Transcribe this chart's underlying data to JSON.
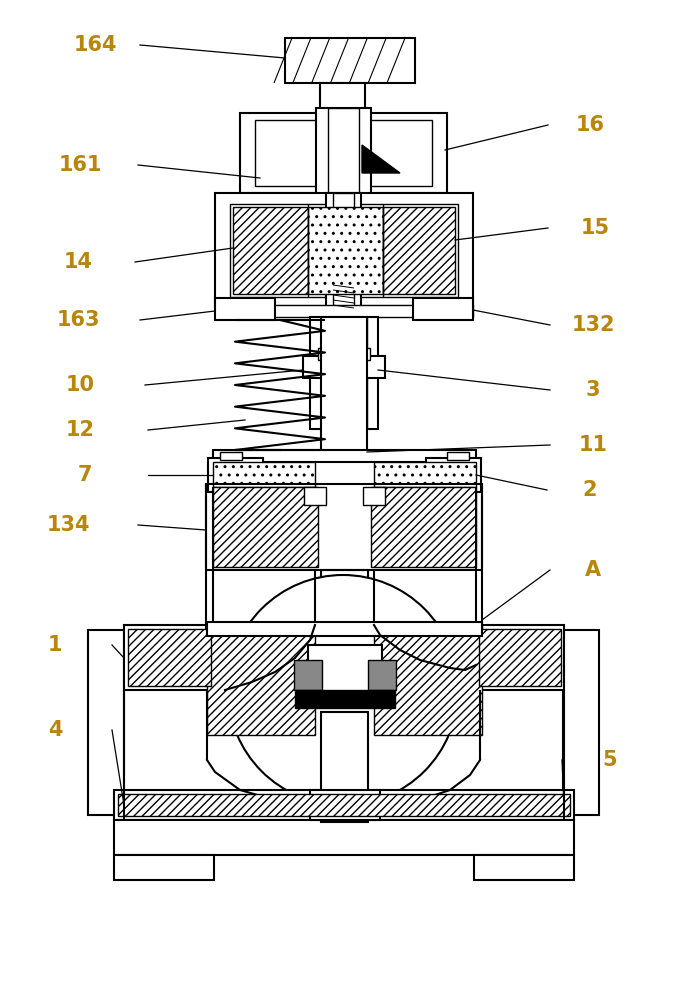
{
  "bg_color": "#ffffff",
  "label_color": "#b8860b",
  "label_fontsize": 15,
  "figsize": [
    6.87,
    10.0
  ],
  "dpi": 100,
  "lw_thin": 1.0,
  "lw_med": 1.5,
  "lw_thick": 2.0
}
